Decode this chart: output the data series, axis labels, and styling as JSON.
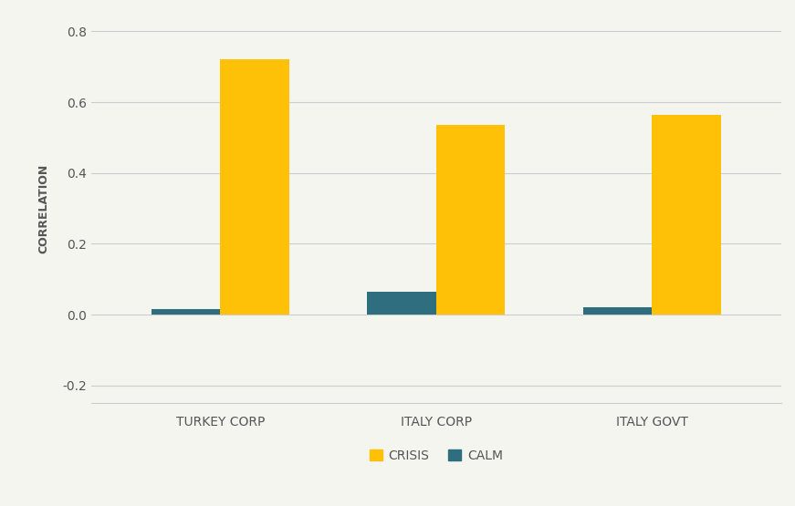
{
  "categories": [
    "TURKEY CORP",
    "ITALY CORP",
    "ITALY GOVT"
  ],
  "crisis_values": [
    0.72,
    0.535,
    0.565
  ],
  "calm_values": [
    0.015,
    0.065,
    0.022
  ],
  "crisis_color": "#FFC107",
  "calm_color": "#2E6E7E",
  "bar_width": 0.32,
  "ylabel": "CORRELATION",
  "ylim": [
    -0.25,
    0.85
  ],
  "yticks": [
    -0.2,
    0.0,
    0.2,
    0.4,
    0.6,
    0.8
  ],
  "background_color": "#F5F5F0",
  "grid_color": "#CCCCCC",
  "text_color": "#555555",
  "legend_labels": [
    "CRISIS",
    "CALM"
  ],
  "ylabel_fontsize": 9,
  "tick_fontsize": 10,
  "legend_fontsize": 10
}
